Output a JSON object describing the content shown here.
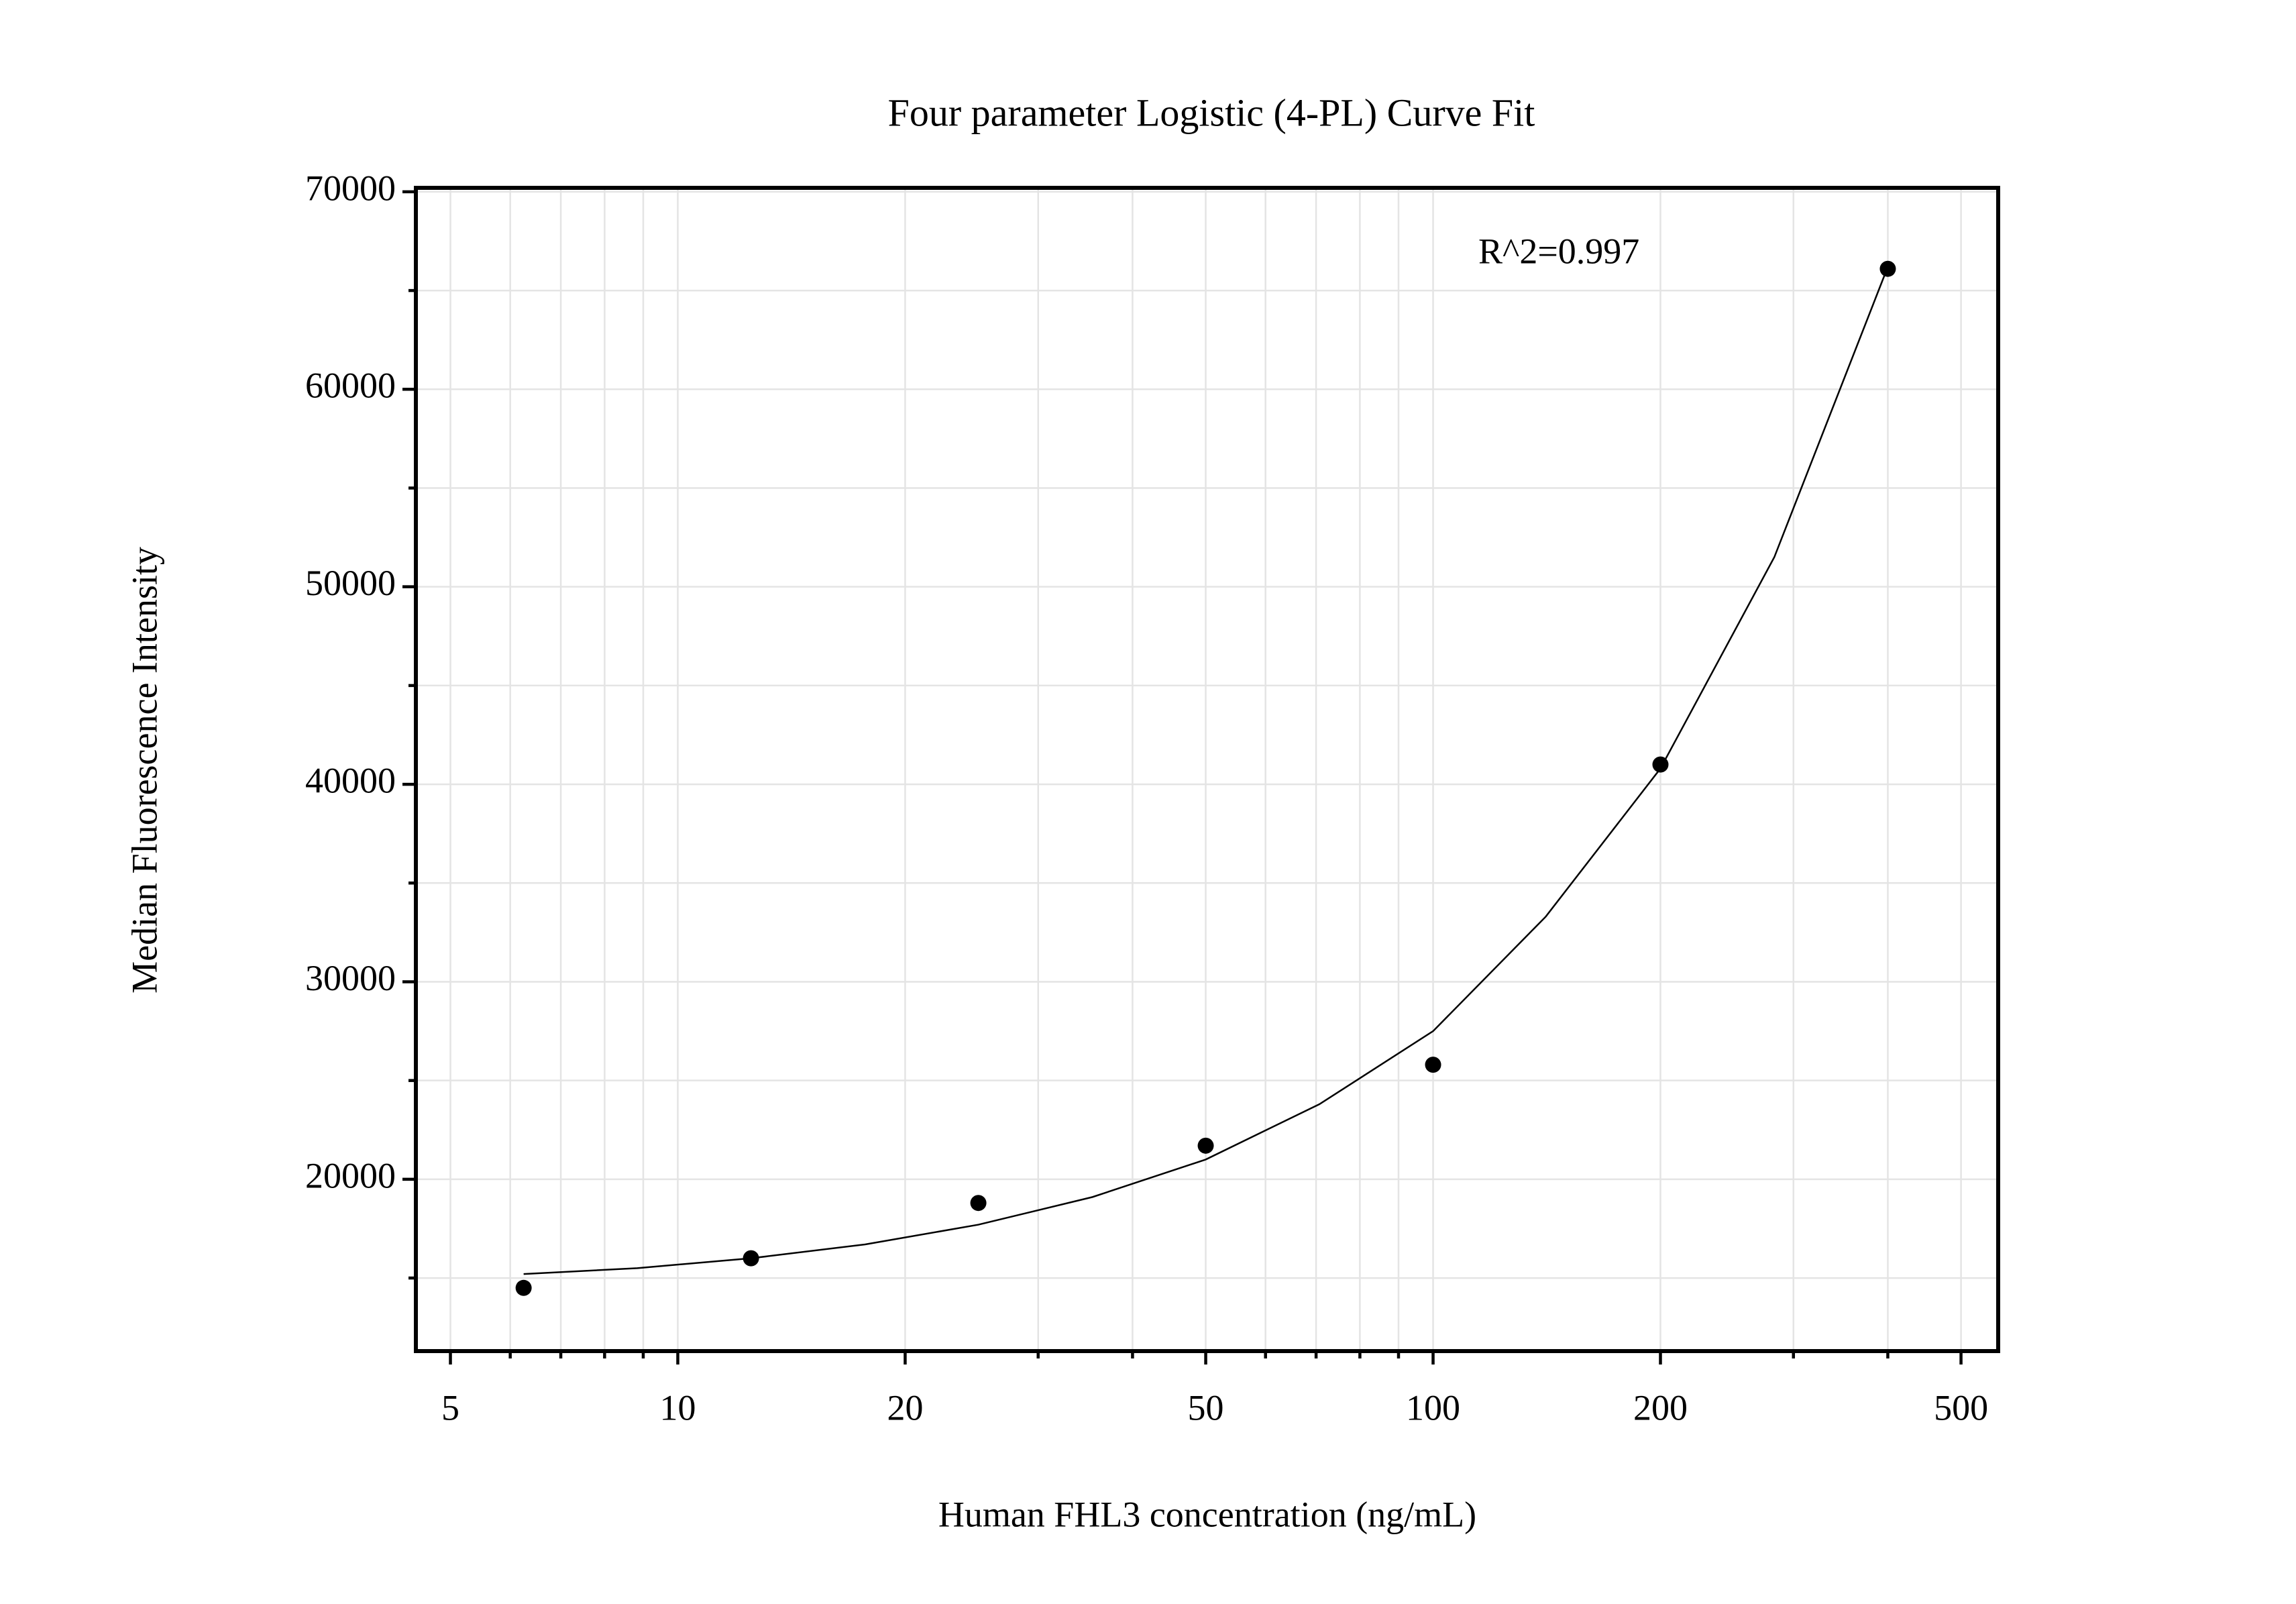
{
  "chart_data": {
    "type": "scatter",
    "title": "Four parameter Logistic (4-PL) Curve Fit",
    "xlabel": "Human FHL3 concentration (ng/mL)",
    "ylabel": "Median Fluorescence Intensity",
    "annotation": "R^2=0.997",
    "xscale": "log",
    "grid": true,
    "xlim": [
      4.5,
      560
    ],
    "ylim": [
      11300,
      70200
    ],
    "xticks": [
      5,
      10,
      20,
      50,
      100,
      200,
      500
    ],
    "xminor_ticks": [
      6,
      7,
      8,
      9,
      30,
      40,
      60,
      70,
      80,
      90,
      300,
      400
    ],
    "yticks": [
      20000,
      30000,
      40000,
      50000,
      60000,
      70000
    ],
    "yminor_ticks": [
      15000,
      25000,
      35000,
      45000,
      55000,
      65000
    ],
    "series": [
      {
        "style": "markers",
        "color": "#000000",
        "x": [
          6.25,
          12.5,
          25,
          50,
          100,
          200,
          400
        ],
        "values": [
          14500,
          16000,
          18800,
          21700,
          25800,
          41000,
          66100
        ]
      },
      {
        "style": "line",
        "color": "#000000",
        "x": [
          6.25,
          8.84,
          12.5,
          17.7,
          25,
          35.4,
          50,
          70.7,
          100,
          141,
          200,
          283,
          400
        ],
        "values": [
          15200,
          15500,
          16000,
          16700,
          17700,
          19100,
          21000,
          23800,
          27500,
          33300,
          40800,
          51500,
          66200
        ]
      }
    ]
  }
}
